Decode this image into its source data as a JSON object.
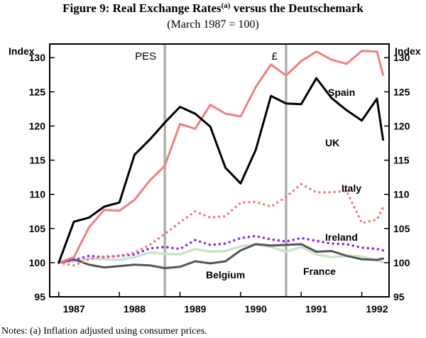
{
  "chart_data": {
    "type": "line",
    "title_main": "Figure 9: Real Exchange Rates",
    "title_superscript": "(a)",
    "title_rest": " versus the Deutschemark",
    "subtitle": "(March 1987 = 100)",
    "ylabel_left": "Index",
    "ylabel_right": "Index",
    "ylim": [
      95,
      132
    ],
    "xlim": [
      1986.85,
      1992.45
    ],
    "yticks": [
      95,
      100,
      105,
      110,
      115,
      120,
      125,
      130
    ],
    "xtick_labels": [
      "1987",
      "1988",
      "1989",
      "1990",
      "1991",
      "1992"
    ],
    "xtick_positions": [
      1987.25,
      1988.25,
      1989.25,
      1990.25,
      1991.25,
      1992.25
    ],
    "events": [
      {
        "label": "PES",
        "x": 1988.75
      },
      {
        "label": "£",
        "x": 1990.75
      }
    ],
    "series": [
      {
        "name": "Spain",
        "label": "Spain",
        "color": "#f08080",
        "dash": "solid",
        "x": [
          1987.0,
          1987.25,
          1987.5,
          1987.75,
          1988.0,
          1988.25,
          1988.5,
          1988.75,
          1989.0,
          1989.25,
          1989.5,
          1989.75,
          1990.0,
          1990.25,
          1990.5,
          1990.75,
          1991.0,
          1991.25,
          1991.5,
          1991.75,
          1992.0,
          1992.25
        ],
        "values": [
          100.0,
          100.8,
          105.2,
          107.7,
          107.6,
          109.2,
          112.0,
          114.2,
          120.3,
          119.6,
          123.1,
          121.8,
          121.4,
          125.7,
          129.0,
          127.4,
          129.5,
          130.9,
          129.7,
          129.1,
          131.0,
          130.9
        ]
      },
      {
        "name": "Spain-end",
        "label": "",
        "color": "#f08080",
        "dash": "solid",
        "x": [
          1992.25,
          1992.35
        ],
        "values": [
          130.9,
          127.5
        ]
      },
      {
        "name": "UK",
        "label": "UK",
        "color": "#000000",
        "dash": "solid",
        "x": [
          1987.0,
          1987.25,
          1987.5,
          1987.75,
          1988.0,
          1988.25,
          1988.5,
          1988.75,
          1989.0,
          1989.25,
          1989.5,
          1989.75,
          1990.0,
          1990.25,
          1990.5,
          1990.75,
          1991.0,
          1991.25,
          1991.5,
          1991.75,
          1992.0,
          1992.25,
          1992.35
        ],
        "values": [
          100.0,
          106.0,
          106.6,
          108.2,
          108.8,
          115.8,
          118.0,
          120.5,
          122.8,
          121.8,
          119.9,
          113.9,
          111.6,
          116.5,
          124.4,
          123.3,
          123.2,
          127.0,
          124.1,
          122.3,
          120.8,
          124.0,
          118.0
        ]
      },
      {
        "name": "Italy",
        "label": "Italy",
        "color": "#f08080",
        "dash": "dot",
        "x": [
          1987.0,
          1987.25,
          1987.5,
          1987.75,
          1988.0,
          1988.25,
          1988.5,
          1988.75,
          1989.0,
          1989.25,
          1989.5,
          1989.75,
          1990.0,
          1990.25,
          1990.5,
          1990.75,
          1991.0,
          1991.25,
          1991.5,
          1991.75,
          1992.0,
          1992.25,
          1992.35
        ],
        "values": [
          100.0,
          99.6,
          100.5,
          100.9,
          101.0,
          101.5,
          102.6,
          104.2,
          105.9,
          107.5,
          106.6,
          106.8,
          108.8,
          108.9,
          108.2,
          109.6,
          111.5,
          110.3,
          110.3,
          110.5,
          105.8,
          106.3,
          108.1
        ]
      },
      {
        "name": "Ireland",
        "label": "Ireland",
        "color": "#8a2be2",
        "dash": "dot",
        "x": [
          1987.0,
          1987.25,
          1987.5,
          1987.75,
          1988.0,
          1988.25,
          1988.5,
          1988.75,
          1989.0,
          1989.25,
          1989.5,
          1989.75,
          1990.0,
          1990.25,
          1990.5,
          1990.75,
          1991.0,
          1991.25,
          1991.5,
          1991.75,
          1992.0,
          1992.25,
          1992.35
        ],
        "values": [
          100.0,
          100.4,
          101.0,
          100.8,
          101.0,
          101.2,
          102.1,
          102.3,
          102.0,
          103.3,
          102.6,
          102.8,
          103.6,
          103.9,
          103.4,
          103.1,
          103.6,
          103.2,
          102.8,
          102.7,
          102.2,
          102.0,
          101.8
        ]
      },
      {
        "name": "France",
        "label": "France",
        "color": "#c8e6c9",
        "dash": "solid",
        "x": [
          1987.0,
          1987.25,
          1987.5,
          1987.75,
          1988.0,
          1988.25,
          1988.5,
          1988.75,
          1989.0,
          1989.25,
          1989.5,
          1989.75,
          1990.0,
          1990.25,
          1990.5,
          1990.75,
          1991.0,
          1991.25,
          1991.5,
          1991.75,
          1992.0,
          1992.25,
          1992.35
        ],
        "values": [
          100.0,
          100.2,
          100.6,
          100.5,
          100.4,
          100.8,
          101.5,
          101.3,
          101.2,
          102.0,
          101.6,
          101.7,
          102.4,
          102.7,
          102.3,
          101.6,
          102.3,
          101.2,
          100.8,
          101.0,
          100.9,
          100.3,
          100.1
        ]
      },
      {
        "name": "Belgium",
        "label": "Belgium",
        "color": "#555555",
        "dash": "solid",
        "x": [
          1987.0,
          1987.25,
          1987.5,
          1987.75,
          1988.0,
          1988.25,
          1988.5,
          1988.75,
          1989.0,
          1989.25,
          1989.5,
          1989.75,
          1990.0,
          1990.25,
          1990.5,
          1990.75,
          1991.0,
          1991.25,
          1991.5,
          1991.75,
          1992.0,
          1992.25,
          1992.35
        ],
        "values": [
          100.0,
          100.5,
          99.7,
          99.3,
          99.5,
          99.7,
          99.6,
          99.2,
          99.4,
          100.2,
          99.9,
          100.2,
          101.8,
          102.7,
          102.5,
          102.6,
          102.7,
          101.6,
          101.7,
          101.0,
          100.5,
          100.4,
          100.6
        ]
      }
    ],
    "labels": {
      "spain": "Spain",
      "uk": "UK",
      "italy": "Italy",
      "ireland": "Ireland",
      "france": "France",
      "belgium": "Belgium"
    },
    "grid": false,
    "legend": "inline labels"
  },
  "notes": "Notes:   (a) Inflation adjusted using consumer prices."
}
